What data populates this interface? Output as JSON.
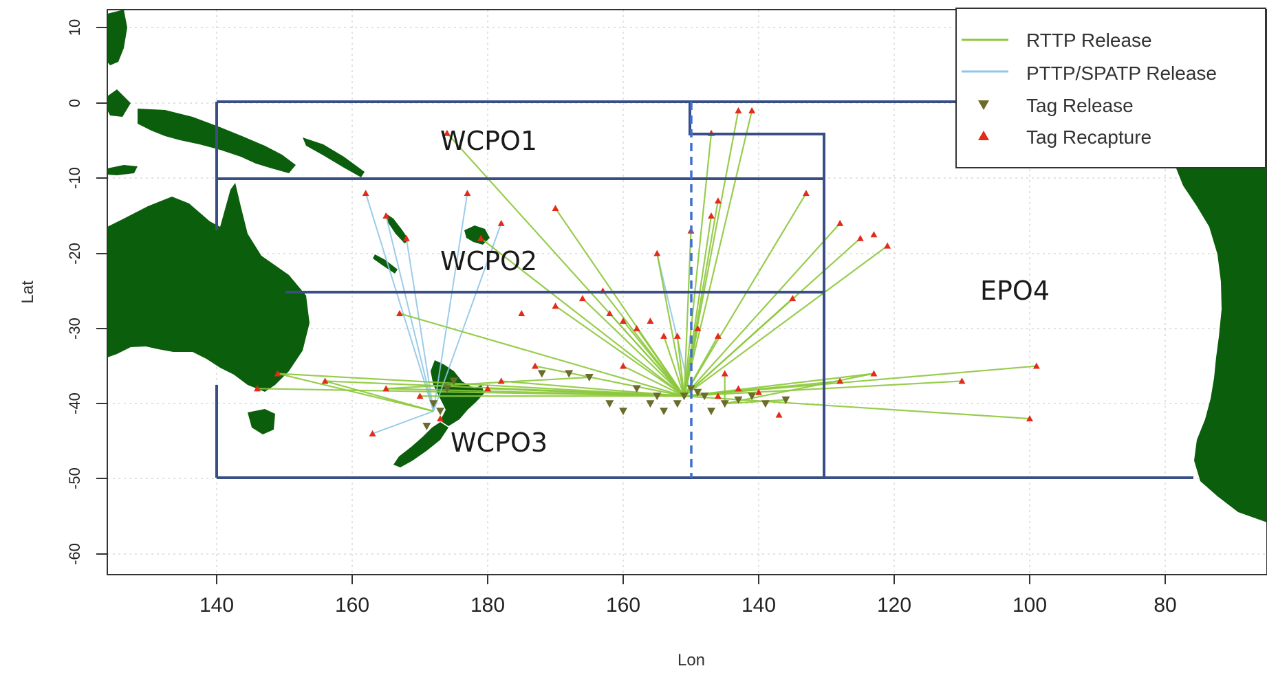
{
  "map": {
    "axes": {
      "xlabel": "Lon",
      "ylabel": "Lat",
      "x_ticks": [
        "140",
        "160",
        "180",
        "160",
        "140",
        "120",
        "100",
        "80"
      ],
      "y_ticks": [
        "10",
        "0",
        "-10",
        "-20",
        "-30",
        "-40",
        "-50",
        "-60"
      ]
    },
    "regions": [
      {
        "id": "wcpo1",
        "label": "WCPO1"
      },
      {
        "id": "wcpo2",
        "label": "WCPO2"
      },
      {
        "id": "wcpo3",
        "label": "WCPO3"
      },
      {
        "id": "epo4",
        "label": "EPO4"
      }
    ],
    "legend": {
      "rttp": "RTTP Release",
      "pttp": "PTTP/SPATP Release",
      "release": "Tag Release",
      "recapture": "Tag Recapture"
    },
    "colors": {
      "land": "#0b5e0b",
      "boundary": "#3a4e86",
      "rttp_line": "#8cc83a",
      "pttp_line": "#8fc6e8",
      "release_marker": "#6b6b2a",
      "recapture_marker": "#e32b1a",
      "grid": "#d8d8d8"
    },
    "chart_data": {
      "type": "scatter",
      "title": "",
      "xlabel": "Lon",
      "ylabel": "Lat",
      "grid": true,
      "legend_position": "top-right",
      "series": [
        {
          "name": "RTTP Release",
          "kind": "line"
        },
        {
          "name": "PTTP/SPATP Release",
          "kind": "line"
        },
        {
          "name": "Tag Release",
          "kind": "marker"
        },
        {
          "name": "Tag Recapture",
          "kind": "marker"
        }
      ],
      "boundary_lat_lon": [
        [
          [
            -140,
            0
          ],
          [
            -210,
            0
          ]
        ],
        [
          [
            -140,
            -10
          ],
          [
            -210,
            -10
          ]
        ],
        [
          [
            -140,
            -25
          ],
          [
            -210,
            -25
          ]
        ],
        [
          [
            -140,
            -50
          ],
          [
            -290,
            -50
          ]
        ],
        [
          [
            -140,
            0
          ],
          [
            -140,
            -18
          ]
        ],
        [
          [
            -150,
            0
          ],
          [
            -150,
            -4
          ],
          [
            -130,
            -4
          ],
          [
            -130,
            -50
          ]
        ],
        [
          [
            -150,
            0
          ],
          [
            -90,
            0
          ]
        ]
      ],
      "releases": [
        [
          -150,
          -38
        ],
        [
          -151,
          -39
        ],
        [
          -152,
          -40
        ],
        [
          -149,
          -38.5
        ],
        [
          -148,
          -39
        ],
        [
          -147,
          -41
        ],
        [
          -145,
          -40
        ],
        [
          -143,
          -39.5
        ],
        [
          -141,
          -39
        ],
        [
          -139,
          -40
        ],
        [
          -136,
          -39.5
        ],
        [
          -155,
          -39
        ],
        [
          -158,
          -38
        ],
        [
          -162,
          -40
        ],
        [
          -165,
          -36.5
        ],
        [
          -168,
          -36
        ],
        [
          -172,
          -36
        ],
        [
          -160,
          -41
        ],
        [
          -156,
          -40
        ],
        [
          -154,
          -41
        ],
        [
          -188,
          -40
        ],
        [
          -187,
          -41
        ],
        [
          -189,
          -43
        ],
        [
          -186,
          -38
        ],
        [
          -185,
          -37
        ]
      ],
      "recaptures": [
        [
          -166,
          -26
        ],
        [
          -170,
          -27
        ],
        [
          -175,
          -28
        ],
        [
          -162,
          -28
        ],
        [
          -160,
          -29
        ],
        [
          -158,
          -30
        ],
        [
          -156,
          -29
        ],
        [
          -152,
          -31
        ],
        [
          -149,
          -30
        ],
        [
          -146,
          -31
        ],
        [
          -155,
          -20
        ],
        [
          -150,
          -17
        ],
        [
          -147,
          -15
        ],
        [
          -146,
          -13
        ],
        [
          -143,
          -1
        ],
        [
          -141,
          -1
        ],
        [
          -147,
          -4
        ],
        [
          -133,
          -12
        ],
        [
          -128,
          -16
        ],
        [
          -125,
          -18
        ],
        [
          -123,
          -17.5
        ],
        [
          -121,
          -19
        ],
        [
          -99,
          -35
        ],
        [
          -110,
          -37
        ],
        [
          -100,
          -42
        ],
        [
          -137,
          -41.5
        ],
        [
          -128,
          -37
        ],
        [
          -123,
          -36
        ],
        [
          -197,
          -44
        ],
        [
          -195,
          -38
        ],
        [
          -204,
          -37
        ],
        [
          -211,
          -36
        ],
        [
          -214,
          -38
        ],
        [
          -160,
          -35
        ],
        [
          -145,
          -36
        ],
        [
          -140,
          -38.5
        ],
        [
          -143,
          -38
        ],
        [
          -146,
          -39
        ],
        [
          -163,
          -25
        ],
        [
          -187,
          -42
        ],
        [
          -190,
          -39
        ],
        [
          -180,
          -38
        ],
        [
          -178,
          -37
        ],
        [
          -173,
          -35
        ],
        [
          -193,
          -28
        ],
        [
          -198,
          -12
        ],
        [
          -195,
          -15
        ],
        [
          -192,
          -18
        ],
        [
          -186,
          -4
        ],
        [
          -170,
          -14
        ],
        [
          -181,
          -18
        ],
        [
          -183,
          -12
        ],
        [
          -178,
          -16
        ],
        [
          -154,
          -31
        ],
        [
          -135,
          -26
        ]
      ],
      "rttp_tracks": [
        [
          [
            -151,
            -39
          ],
          [
            -166,
            -26
          ]
        ],
        [
          [
            -151,
            -39
          ],
          [
            -170,
            -27
          ]
        ],
        [
          [
            -151,
            -39
          ],
          [
            -143,
            -1
          ]
        ],
        [
          [
            -151,
            -39
          ],
          [
            -141,
            -1
          ]
        ],
        [
          [
            -151,
            -39
          ],
          [
            -147,
            -4
          ]
        ],
        [
          [
            -151,
            -39
          ],
          [
            -133,
            -12
          ]
        ],
        [
          [
            -151,
            -39
          ],
          [
            -128,
            -16
          ]
        ],
        [
          [
            -151,
            -39
          ],
          [
            -125,
            -18
          ]
        ],
        [
          [
            -151,
            -39
          ],
          [
            -121,
            -19
          ]
        ],
        [
          [
            -151,
            -39
          ],
          [
            -99,
            -35
          ]
        ],
        [
          [
            -151,
            -39
          ],
          [
            -110,
            -37
          ]
        ],
        [
          [
            -151,
            -39
          ],
          [
            -100,
            -42
          ]
        ],
        [
          [
            -151,
            -39
          ],
          [
            -123,
            -36
          ]
        ],
        [
          [
            -151,
            -39
          ],
          [
            -128,
            -37
          ]
        ],
        [
          [
            -151,
            -39
          ],
          [
            -155,
            -20
          ]
        ],
        [
          [
            -151,
            -39
          ],
          [
            -150,
            -17
          ]
        ],
        [
          [
            -151,
            -39
          ],
          [
            -147,
            -15
          ]
        ],
        [
          [
            -151,
            -39
          ],
          [
            -146,
            -13
          ]
        ],
        [
          [
            -151,
            -39
          ],
          [
            -162,
            -28
          ]
        ],
        [
          [
            -151,
            -39
          ],
          [
            -158,
            -30
          ]
        ],
        [
          [
            -151,
            -39
          ],
          [
            -160,
            -29
          ]
        ],
        [
          [
            -151,
            -39
          ],
          [
            -152,
            -31
          ]
        ],
        [
          [
            -151,
            -39
          ],
          [
            -149,
            -30
          ]
        ],
        [
          [
            -151,
            -39
          ],
          [
            -146,
            -31
          ]
        ],
        [
          [
            -151,
            -39
          ],
          [
            -135,
            -26
          ]
        ],
        [
          [
            -151,
            -39
          ],
          [
            -163,
            -25
          ]
        ],
        [
          [
            -151,
            -39
          ],
          [
            -170,
            -14
          ]
        ],
        [
          [
            -151,
            -39
          ],
          [
            -195,
            -38
          ]
        ],
        [
          [
            -151,
            -39
          ],
          [
            -211,
            -36
          ]
        ],
        [
          [
            -151,
            -39
          ],
          [
            -204,
            -37
          ]
        ],
        [
          [
            -151,
            -39
          ],
          [
            -214,
            -38
          ]
        ],
        [
          [
            -151,
            -39
          ],
          [
            -180,
            -38
          ]
        ],
        [
          [
            -151,
            -39
          ],
          [
            -173,
            -35
          ]
        ],
        [
          [
            -151,
            -39
          ],
          [
            -178,
            -37
          ]
        ],
        [
          [
            -151,
            -39
          ],
          [
            -190,
            -39
          ]
        ],
        [
          [
            -151,
            -39
          ],
          [
            -181,
            -18
          ]
        ],
        [
          [
            -151,
            -39
          ],
          [
            -186,
            -4
          ]
        ],
        [
          [
            -151,
            -39
          ],
          [
            -193,
            -28
          ]
        ],
        [
          [
            -151,
            -39
          ],
          [
            -154,
            -31
          ]
        ],
        [
          [
            -151,
            -39
          ],
          [
            -160,
            -35
          ]
        ],
        [
          [
            -145,
            -40
          ],
          [
            -136,
            -39.5
          ]
        ],
        [
          [
            -145,
            -40
          ],
          [
            -145,
            -36
          ]
        ],
        [
          [
            -145,
            -40
          ],
          [
            -123,
            -36
          ]
        ],
        [
          [
            -165,
            -36.5
          ],
          [
            -195,
            -38
          ]
        ],
        [
          [
            -188,
            -41
          ],
          [
            -204,
            -37
          ]
        ],
        [
          [
            -188,
            -41
          ],
          [
            -211,
            -36
          ]
        ]
      ],
      "pttp_tracks": [
        [
          [
            -188,
            -41
          ],
          [
            -198,
            -12
          ]
        ],
        [
          [
            -188,
            -41
          ],
          [
            -195,
            -15
          ]
        ],
        [
          [
            -188,
            -41
          ],
          [
            -192,
            -18
          ]
        ],
        [
          [
            -188,
            -41
          ],
          [
            -197,
            -44
          ]
        ],
        [
          [
            -188,
            -41
          ],
          [
            -183,
            -12
          ]
        ],
        [
          [
            -188,
            -41
          ],
          [
            -178,
            -16
          ]
        ],
        [
          [
            -150,
            -39
          ],
          [
            -155,
            -20
          ]
        ]
      ]
    }
  }
}
